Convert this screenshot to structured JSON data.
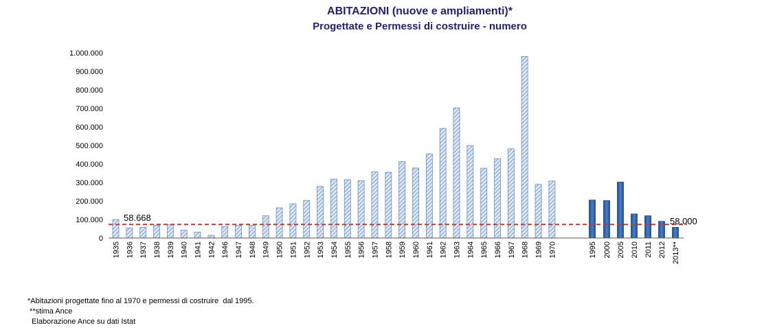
{
  "chart_data": {
    "type": "bar",
    "title": "ABITAZIONI  (nuove e ampliamenti)*",
    "subtitle": "Progettate e Permessi di costruire - numero",
    "categories": [
      "1935",
      "1936",
      "1937",
      "1938",
      "1939",
      "1940",
      "1941",
      "1942",
      "1946",
      "1947",
      "1948",
      "1949",
      "1950",
      "1951",
      "1952",
      "1953",
      "1954",
      "1955",
      "1956",
      "1957",
      "1958",
      "1959",
      "1960",
      "1961",
      "1962",
      "1963",
      "1964",
      "1965",
      "1966",
      "1967",
      "1968",
      "1969",
      "1970",
      "1995",
      "2000",
      "2005",
      "2010",
      "2011",
      "2012",
      "2013**"
    ],
    "values": [
      100000,
      55000,
      58000,
      68000,
      72000,
      42000,
      32000,
      15000,
      62000,
      68000,
      68000,
      120000,
      163000,
      185000,
      203000,
      278000,
      318000,
      315000,
      310000,
      358000,
      355000,
      413000,
      378000,
      455000,
      592000,
      703000,
      498000,
      377000,
      428000,
      482000,
      980000,
      290000,
      308000,
      205000,
      202000,
      302000,
      130000,
      120000,
      90000,
      58000
    ],
    "series": [
      {
        "name": "Abitazioni progettate",
        "color": "#a9c4e8"
      },
      {
        "name": "Permessi di costruire",
        "color": "#3a6fb5"
      }
    ],
    "ylim": [
      0,
      1000000
    ],
    "yticks": [
      "0",
      "100.000",
      "200.000",
      "300.000",
      "400.000",
      "500.000",
      "600.000",
      "700.000",
      "800.000",
      "900.000",
      "1.000.000"
    ],
    "reference_line": {
      "value": 73000,
      "color": "#c0392b"
    },
    "annotations": [
      "58.668",
      "58.000"
    ],
    "grid": false
  },
  "notes": [
    "*Abitazioni progettate fino al 1970 e permessi di costruire  dal 1995.",
    " **stima Ance",
    "  Elaborazione Ance su dati Istat"
  ]
}
